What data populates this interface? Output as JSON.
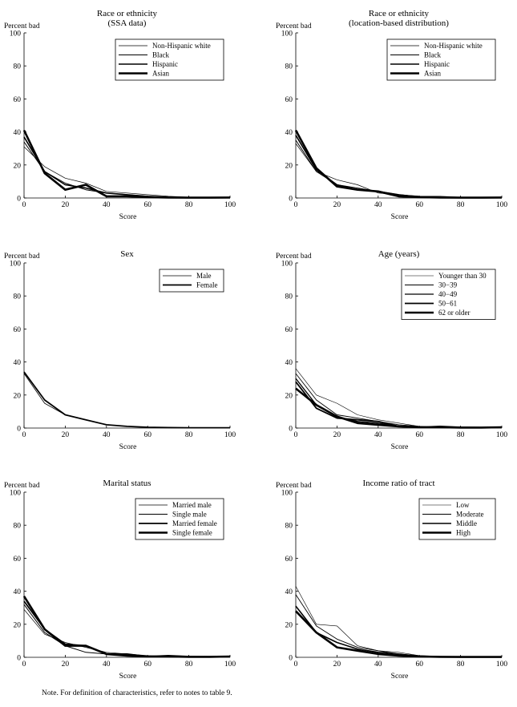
{
  "footnote": "Note. For definition of characteristics, refer to notes to table 9.",
  "chart_data": [
    {
      "type": "line",
      "title": [
        "Race or ethnicity",
        "(SSA data)"
      ],
      "xlabel": "Score",
      "ylabel": "Percent bad",
      "xlim": [
        0,
        100
      ],
      "ylim": [
        0,
        100
      ],
      "xticks": [
        0,
        20,
        40,
        60,
        80,
        100
      ],
      "yticks": [
        0,
        20,
        40,
        60,
        80,
        100
      ],
      "legend_position": "top-right",
      "x": [
        0,
        10,
        20,
        30,
        40,
        50,
        60,
        70,
        80,
        90,
        100
      ],
      "series": [
        {
          "name": "Non-Hispanic white",
          "weight": 0.7,
          "values": [
            31,
            19,
            12,
            9,
            4,
            3,
            2,
            1,
            0.5,
            0.3,
            0.2
          ]
        },
        {
          "name": "Black",
          "weight": 1.0,
          "values": [
            34,
            16,
            9,
            5,
            3,
            2,
            1,
            0.5,
            0.3,
            0.3,
            0.5
          ]
        },
        {
          "name": "Hispanic",
          "weight": 1.6,
          "values": [
            37,
            16,
            8,
            6,
            3,
            2,
            1,
            0.5,
            0.3,
            0.3,
            0.3
          ]
        },
        {
          "name": "Asian",
          "weight": 2.6,
          "values": [
            41,
            15,
            5,
            8,
            1,
            1,
            0.5,
            0.3,
            0.2,
            0.2,
            0.3
          ]
        }
      ]
    },
    {
      "type": "line",
      "title": [
        "Race or ethnicity",
        "(location-based distribution)"
      ],
      "xlabel": "Score",
      "ylabel": "Percent bad",
      "xlim": [
        0,
        100
      ],
      "ylim": [
        0,
        100
      ],
      "xticks": [
        0,
        20,
        40,
        60,
        80,
        100
      ],
      "yticks": [
        0,
        20,
        40,
        60,
        80,
        100
      ],
      "legend_position": "top-right",
      "x": [
        0,
        10,
        20,
        30,
        40,
        50,
        60,
        70,
        80,
        90,
        100
      ],
      "series": [
        {
          "name": "Non-Hispanic white",
          "weight": 0.7,
          "values": [
            33,
            16,
            11,
            8,
            3,
            2,
            1,
            1,
            0.5,
            0.3,
            0.2
          ]
        },
        {
          "name": "Black",
          "weight": 1.0,
          "values": [
            35,
            16,
            8,
            6,
            4,
            2,
            1,
            0.5,
            0.3,
            0.3,
            0.5
          ]
        },
        {
          "name": "Hispanic",
          "weight": 1.6,
          "values": [
            38,
            17,
            8,
            5,
            4,
            2,
            0.5,
            0.3,
            0.3,
            0.3,
            0.3
          ]
        },
        {
          "name": "Asian",
          "weight": 2.6,
          "values": [
            41,
            18,
            7,
            5,
            4,
            1,
            0.5,
            0.3,
            0.2,
            0.2,
            0.3
          ]
        }
      ]
    },
    {
      "type": "line",
      "title": [
        "Sex"
      ],
      "xlabel": "Score",
      "ylabel": "Percent bad",
      "xlim": [
        0,
        100
      ],
      "ylim": [
        0,
        100
      ],
      "xticks": [
        0,
        20,
        40,
        60,
        80,
        100
      ],
      "yticks": [
        0,
        20,
        40,
        60,
        80,
        100
      ],
      "legend_position": "top-right",
      "x": [
        0,
        10,
        20,
        30,
        40,
        50,
        60,
        70,
        80,
        90,
        100
      ],
      "series": [
        {
          "name": "Male",
          "weight": 0.8,
          "values": [
            33,
            15,
            8,
            5,
            2,
            1,
            0.5,
            0.3,
            0.2,
            0.2,
            0.2
          ]
        },
        {
          "name": "Female",
          "weight": 1.8,
          "values": [
            34,
            17,
            8,
            5,
            2,
            1,
            0.5,
            0.3,
            0.2,
            0.2,
            0.2
          ]
        }
      ]
    },
    {
      "type": "line",
      "title": [
        "Age (years)"
      ],
      "xlabel": "Score",
      "ylabel": "Percent bad",
      "xlim": [
        0,
        100
      ],
      "ylim": [
        0,
        100
      ],
      "xticks": [
        0,
        20,
        40,
        60,
        80,
        100
      ],
      "yticks": [
        0,
        20,
        40,
        60,
        80,
        100
      ],
      "legend_position": "top-right",
      "x": [
        0,
        10,
        20,
        30,
        40,
        50,
        60,
        70,
        80,
        90,
        100
      ],
      "series": [
        {
          "name": "Younger than 30",
          "weight": 0.6,
          "values": [
            36,
            20,
            15,
            8,
            5,
            3,
            1,
            0.5,
            0.5,
            0.3,
            0.5
          ]
        },
        {
          "name": "30−39",
          "weight": 0.9,
          "values": [
            33,
            17,
            8,
            6,
            4,
            2,
            1,
            0.5,
            0.5,
            0.3,
            0.3
          ]
        },
        {
          "name": "40−49",
          "weight": 1.3,
          "values": [
            30,
            14,
            7,
            4,
            3,
            1,
            0.5,
            0.5,
            0.3,
            0.3,
            0.3
          ]
        },
        {
          "name": "50−61",
          "weight": 1.8,
          "values": [
            28,
            12,
            6,
            5,
            4,
            1,
            0.5,
            1,
            0.5,
            0.3,
            0.5
          ]
        },
        {
          "name": "62 or older",
          "weight": 2.6,
          "values": [
            24,
            14,
            7,
            3,
            2,
            1,
            0.5,
            0.5,
            0.3,
            0.3,
            0.5
          ]
        }
      ]
    },
    {
      "type": "line",
      "title": [
        "Marital status"
      ],
      "xlabel": "Score",
      "ylabel": "Percent bad",
      "xlim": [
        0,
        100
      ],
      "ylim": [
        0,
        100
      ],
      "xticks": [
        0,
        20,
        40,
        60,
        80,
        100
      ],
      "yticks": [
        0,
        20,
        40,
        60,
        80,
        100
      ],
      "legend_position": "top-right",
      "x": [
        0,
        10,
        20,
        30,
        40,
        50,
        60,
        70,
        80,
        90,
        100
      ],
      "series": [
        {
          "name": "Married male",
          "weight": 0.7,
          "values": [
            29,
            14,
            9,
            6,
            3,
            2,
            1,
            0.5,
            0.3,
            0.3,
            0.5
          ]
        },
        {
          "name": "Single male",
          "weight": 1.0,
          "values": [
            32,
            15,
            7,
            3,
            2,
            1,
            0.5,
            0.5,
            0.3,
            0.3,
            0.5
          ]
        },
        {
          "name": "Married female",
          "weight": 1.7,
          "values": [
            34,
            17,
            8,
            7,
            2,
            2,
            0.5,
            1,
            0.5,
            0.3,
            0.5
          ]
        },
        {
          "name": "Single female",
          "weight": 2.6,
          "values": [
            37,
            17,
            7,
            7,
            2,
            1,
            0.5,
            0.5,
            0.3,
            0.3,
            0.5
          ]
        }
      ]
    },
    {
      "type": "line",
      "title": [
        "Income ratio of tract"
      ],
      "xlabel": "Score",
      "ylabel": "Percent bad",
      "xlim": [
        0,
        100
      ],
      "ylim": [
        0,
        100
      ],
      "xticks": [
        0,
        20,
        40,
        60,
        80,
        100
      ],
      "yticks": [
        0,
        20,
        40,
        60,
        80,
        100
      ],
      "legend_position": "top-right",
      "x": [
        0,
        10,
        20,
        30,
        40,
        50,
        60,
        70,
        80,
        90,
        100
      ],
      "series": [
        {
          "name": "Low",
          "weight": 0.6,
          "values": [
            43,
            20,
            19,
            7,
            4,
            3,
            1,
            0.5,
            0.3,
            0.2,
            0.2
          ]
        },
        {
          "name": "Moderate",
          "weight": 0.9,
          "values": [
            38,
            19,
            11,
            6,
            4,
            2,
            1,
            0.5,
            0.3,
            0.2,
            0.2
          ]
        },
        {
          "name": "Middle",
          "weight": 1.6,
          "values": [
            31,
            15,
            9,
            5,
            3,
            2,
            0.5,
            0.3,
            0.2,
            0.2,
            0.2
          ]
        },
        {
          "name": "High",
          "weight": 2.6,
          "values": [
            28,
            15,
            6,
            4,
            2,
            1,
            0.5,
            0.3,
            0.2,
            0.2,
            0.2
          ]
        }
      ]
    }
  ]
}
